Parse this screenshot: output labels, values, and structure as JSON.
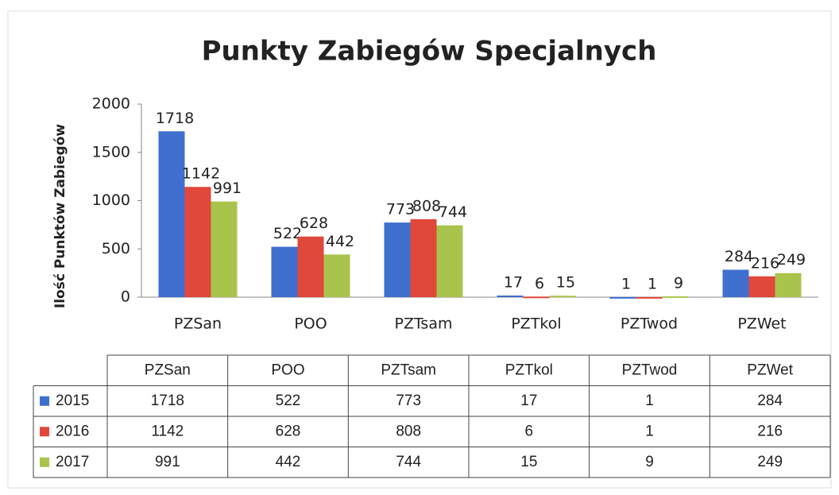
{
  "chart_data": {
    "type": "bar",
    "title": "Punkty Zabiegów Specjalnych",
    "y_label": "Ilość Punktów Zabiegów",
    "categories": [
      "PZSan",
      "POO",
      "PZTsam",
      "PZTkol",
      "PZTwod",
      "PZWet"
    ],
    "series": [
      {
        "name": "2015",
        "color": "#3f6fcf",
        "values": [
          1718,
          522,
          773,
          17,
          1,
          284
        ]
      },
      {
        "name": "2016",
        "color": "#e0483b",
        "values": [
          1142,
          628,
          808,
          6,
          1,
          216
        ]
      },
      {
        "name": "2017",
        "color": "#a9c44c",
        "values": [
          991,
          442,
          744,
          15,
          9,
          249
        ]
      }
    ],
    "ylim": [
      0,
      2000
    ],
    "yticks": [
      0,
      500,
      1000,
      1500,
      2000
    ],
    "grid": false
  }
}
